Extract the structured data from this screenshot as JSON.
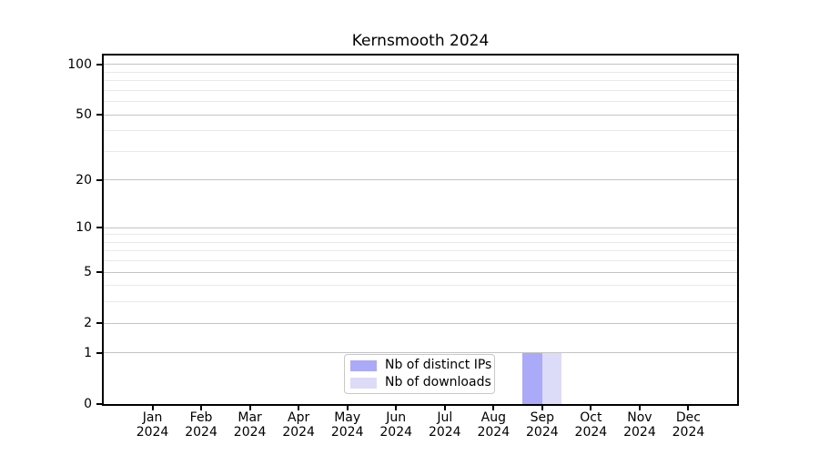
{
  "title": "Kernsmooth 2024",
  "legend": {
    "items": [
      {
        "label": "Nb of distinct IPs",
        "color": "#aaaaf8"
      },
      {
        "label": "Nb of downloads",
        "color": "#dcdcf8"
      }
    ]
  },
  "chart_data": {
    "type": "bar",
    "title": "Kernsmooth 2024",
    "categories": [
      "Jan 2024",
      "Feb 2024",
      "Mar 2024",
      "Apr 2024",
      "May 2024",
      "Jun 2024",
      "Jul 2024",
      "Aug 2024",
      "Sep 2024",
      "Oct 2024",
      "Nov 2024",
      "Dec 2024"
    ],
    "series": [
      {
        "name": "Nb of distinct IPs",
        "color": "#aaaaf8",
        "values": [
          0,
          0,
          0,
          0,
          0,
          0,
          0,
          0,
          1,
          0,
          0,
          0
        ]
      },
      {
        "name": "Nb of downloads",
        "color": "#dcdcf8",
        "values": [
          0,
          0,
          0,
          0,
          0,
          0,
          0,
          0,
          1,
          0,
          0,
          0
        ]
      }
    ],
    "xlabel": "",
    "ylabel": "",
    "y_axis": {
      "scale": "log1p",
      "ticks": [
        0,
        1,
        2,
        5,
        10,
        20,
        50,
        100
      ],
      "minor_ticks": [
        3,
        4,
        6,
        7,
        8,
        9,
        30,
        40,
        60,
        70,
        80,
        90
      ],
      "max": 113
    },
    "grid": {
      "major_color": "#c4c4c4",
      "minor_color": "#e9e9e9",
      "visible": true
    },
    "legend_position": "inside-bottom-center"
  }
}
